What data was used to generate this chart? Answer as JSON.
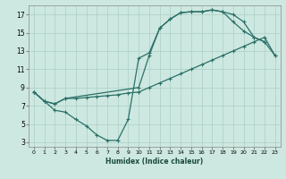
{
  "xlabel": "Humidex (Indice chaleur)",
  "background_color": "#cde8e0",
  "grid_color": "#aacfc7",
  "line_color": "#2a7068",
  "xlim": [
    -0.5,
    23.5
  ],
  "ylim": [
    2.5,
    18.0
  ],
  "xticks": [
    0,
    1,
    2,
    3,
    4,
    5,
    6,
    7,
    8,
    9,
    10,
    11,
    12,
    13,
    14,
    15,
    16,
    17,
    18,
    19,
    20,
    21,
    22,
    23
  ],
  "yticks": [
    3,
    5,
    7,
    9,
    11,
    13,
    15,
    17
  ],
  "line1_x": [
    0,
    1,
    2,
    3,
    4,
    5,
    6,
    7,
    8,
    9,
    10,
    11,
    12,
    13,
    14,
    15,
    16,
    17,
    18,
    19,
    20,
    21,
    22
  ],
  "line1_y": [
    8.5,
    7.5,
    6.5,
    6.3,
    5.5,
    4.8,
    3.8,
    3.2,
    3.2,
    5.5,
    12.2,
    12.8,
    15.5,
    16.5,
    17.2,
    17.3,
    17.3,
    17.5,
    17.3,
    16.2,
    15.2,
    14.5,
    14.0
  ],
  "line2_x": [
    0,
    1,
    2,
    3,
    4,
    5,
    6,
    7,
    8,
    9,
    10,
    11,
    12,
    13,
    14,
    15,
    16,
    17,
    18,
    19,
    20,
    21,
    22,
    23
  ],
  "line2_y": [
    8.5,
    7.5,
    7.2,
    7.8,
    7.8,
    7.9,
    8.0,
    8.1,
    8.2,
    8.4,
    8.5,
    9.0,
    9.5,
    10.0,
    10.5,
    11.0,
    11.5,
    12.0,
    12.5,
    13.0,
    13.5,
    14.0,
    14.5,
    12.5
  ],
  "line3_x": [
    0,
    1,
    2,
    3,
    10,
    11,
    12,
    13,
    14,
    15,
    16,
    17,
    18,
    19,
    20,
    21,
    22,
    23
  ],
  "line3_y": [
    8.5,
    7.5,
    7.2,
    7.8,
    9.0,
    12.5,
    15.5,
    16.5,
    17.2,
    17.3,
    17.3,
    17.5,
    17.3,
    17.0,
    16.2,
    14.5,
    14.0,
    12.5
  ]
}
